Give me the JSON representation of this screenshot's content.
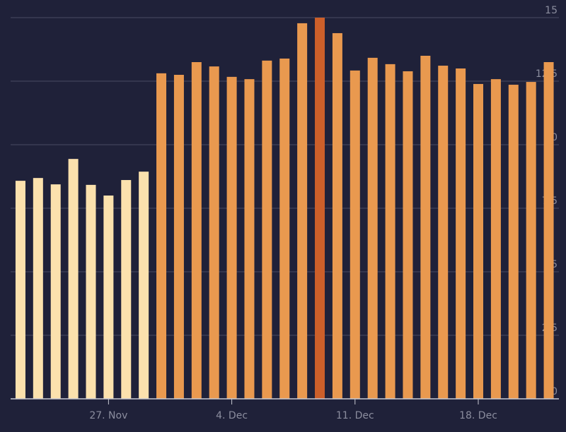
{
  "chart_data": {
    "type": "bar",
    "categories": [
      null,
      null,
      null,
      null,
      null,
      "27. Nov",
      null,
      null,
      null,
      null,
      null,
      null,
      "4. Dec",
      null,
      null,
      null,
      null,
      null,
      null,
      "11. Dec",
      null,
      null,
      null,
      null,
      null,
      null,
      "18. Dec",
      null,
      null,
      null,
      null
    ],
    "values": [
      8.58,
      8.69,
      8.44,
      9.44,
      8.42,
      8.0,
      8.61,
      8.94,
      12.81,
      12.75,
      13.25,
      13.08,
      12.67,
      12.58,
      13.31,
      13.39,
      14.78,
      15.0,
      14.39,
      12.92,
      13.42,
      13.17,
      12.89,
      13.5,
      13.11,
      13.0,
      12.39,
      12.58,
      12.36,
      12.47,
      13.25
    ],
    "colors": [
      "#fbe1ad",
      "#fbe1ad",
      "#fbe1ad",
      "#fbe1ad",
      "#fbe1ad",
      "#fbe1ad",
      "#fbe1ad",
      "#fbe1ad",
      "#e9994f",
      "#e9994f",
      "#e9994f",
      "#e9994f",
      "#e9994f",
      "#e9994f",
      "#e9994f",
      "#e9994f",
      "#e9994f",
      "#cc5f2a",
      "#e9994f",
      "#e9994f",
      "#e9994f",
      "#e9994f",
      "#e9994f",
      "#e9994f",
      "#e9994f",
      "#e9994f",
      "#e9994f",
      "#e9994f",
      "#e9994f",
      "#e9994f",
      "#e9994f"
    ],
    "ylim": [
      0,
      15
    ],
    "yticks": [
      0,
      2.5,
      5,
      7.5,
      10,
      12.5,
      15
    ],
    "grid": true
  }
}
